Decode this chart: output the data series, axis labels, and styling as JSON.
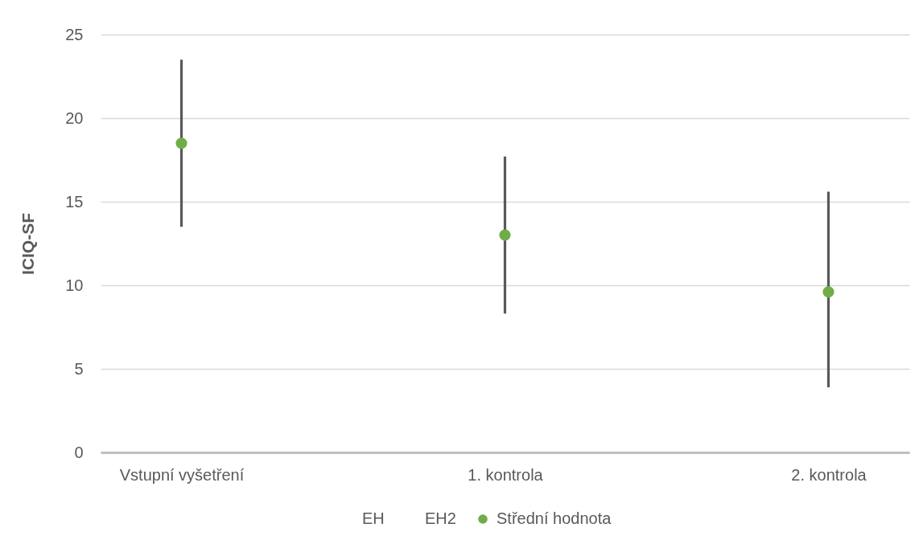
{
  "chart_data": {
    "type": "scatter",
    "categories": [
      "Vstupní vyšetření",
      "1. kontrola",
      "2. kontrola"
    ],
    "ylabel": "ICIQ-SF",
    "ylim": [
      0,
      25
    ],
    "yticks": [
      0,
      5,
      10,
      15,
      20,
      25
    ],
    "grid": "y",
    "legend": "bottom",
    "series": [
      {
        "name": "EH",
        "values": [
          null,
          null,
          null
        ]
      },
      {
        "name": "EH2",
        "values": [
          null,
          null,
          null
        ]
      },
      {
        "name": "Střední hodnota",
        "type": "scatter",
        "color": "#70ad47",
        "marker": "circle",
        "values": [
          18.5,
          13.0,
          9.6
        ],
        "errors": [
          [
            13.5,
            23.5
          ],
          [
            8.3,
            17.7
          ],
          [
            3.9,
            15.6
          ]
        ]
      }
    ]
  }
}
